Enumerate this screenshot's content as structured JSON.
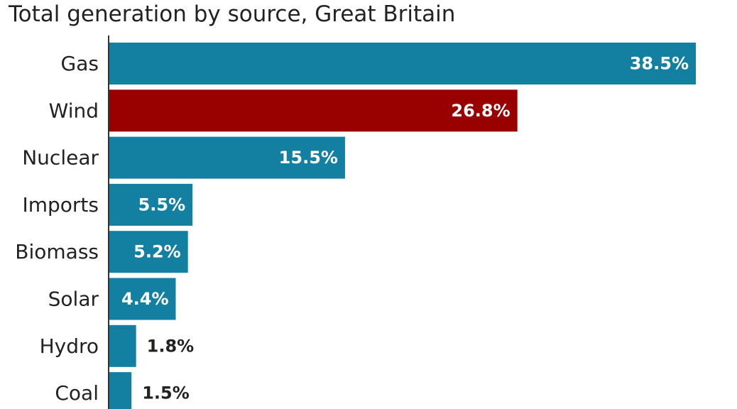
{
  "chart_data": {
    "type": "bar",
    "orientation": "horizontal",
    "title": "Total generation by source, Great Britain",
    "categories": [
      "Gas",
      "Wind",
      "Nuclear",
      "Imports",
      "Biomass",
      "Solar",
      "Hydro",
      "Coal"
    ],
    "values": [
      38.5,
      26.8,
      15.5,
      5.5,
      5.2,
      4.4,
      1.8,
      1.5
    ],
    "value_labels": [
      "38.5%",
      "26.8%",
      "15.5%",
      "5.5%",
      "5.2%",
      "4.4%",
      "1.8%",
      "1.5%"
    ],
    "unit": "%",
    "xlim": [
      0,
      38.5
    ],
    "grid": false,
    "legend": "none",
    "colors": {
      "default_bar": "#1380A1",
      "highlight_bar": "#990000",
      "axis_line": "#333333",
      "text": "#222222",
      "inside_label": "#ffffff",
      "outside_label": "#222222"
    },
    "highlight_category": "Wind"
  }
}
